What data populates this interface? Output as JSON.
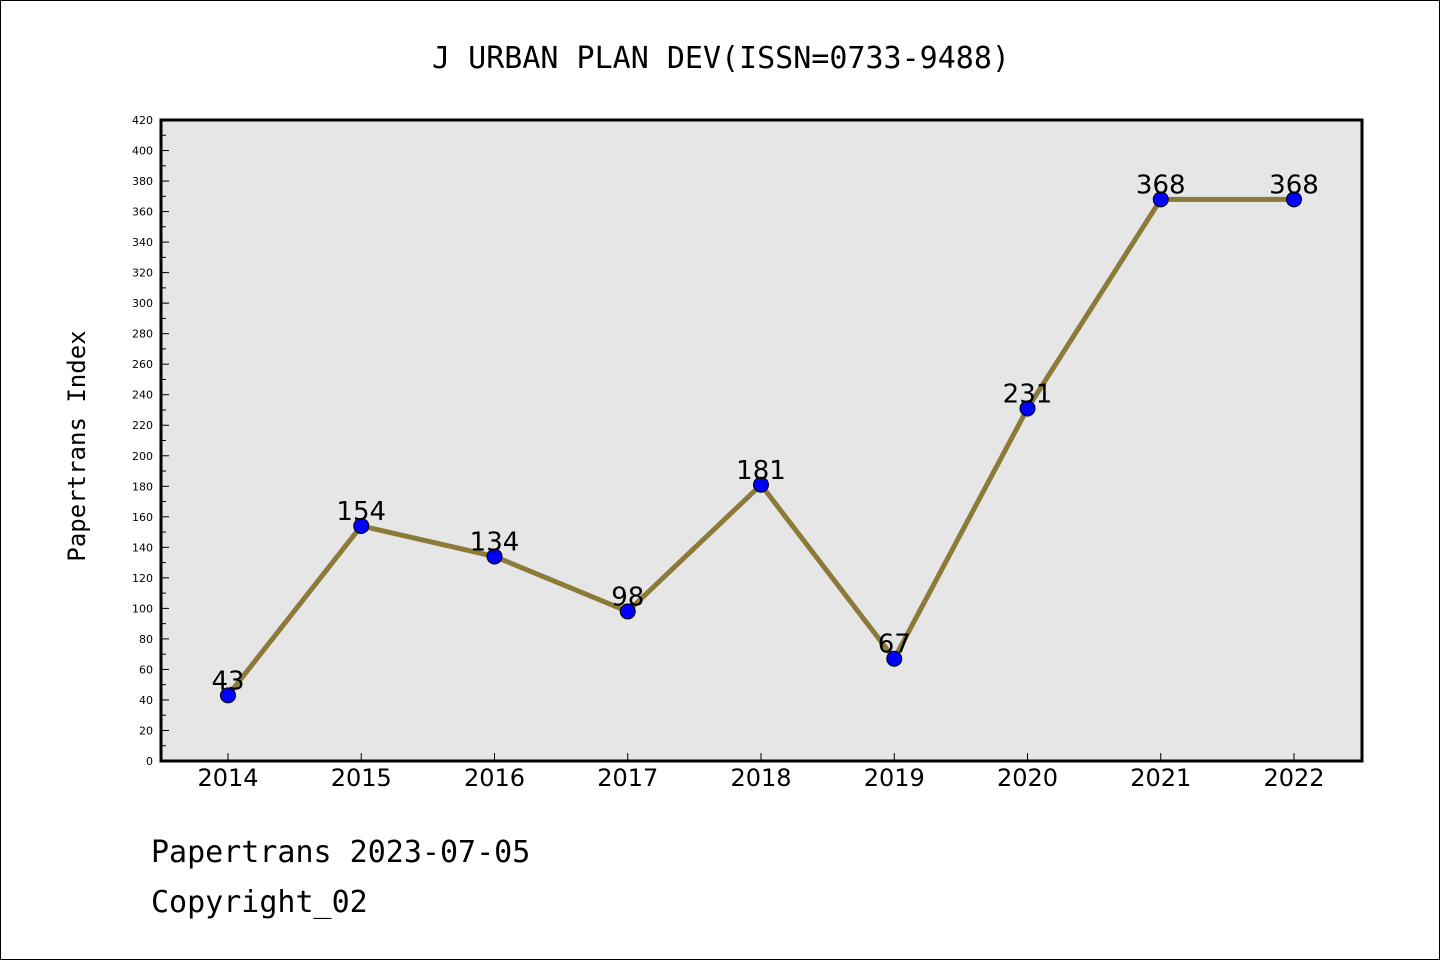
{
  "chart_data": {
    "type": "line",
    "title": "J URBAN PLAN DEV(ISSN=0733-9488)",
    "xlabel": "",
    "ylabel": "Papertrans Index",
    "categories": [
      "2014",
      "2015",
      "2016",
      "2017",
      "2018",
      "2019",
      "2020",
      "2021",
      "2022"
    ],
    "series": [
      {
        "values": [
          43,
          154,
          134,
          98,
          181,
          67,
          231,
          368,
          368
        ]
      }
    ],
    "data_labels": [
      "43",
      "154",
      "134",
      "98",
      "181",
      "67",
      "231",
      "368",
      "368"
    ],
    "ylim": [
      0,
      420
    ],
    "yticks": [
      0,
      20,
      40,
      60,
      80,
      100,
      120,
      140,
      160,
      180,
      200,
      220,
      240,
      260,
      280,
      300,
      320,
      340,
      360,
      380,
      400,
      420
    ],
    "grid": false,
    "legend": "none"
  },
  "colors": {
    "line": "#8b7a38",
    "marker": "#0000ff",
    "plot_background": "#e6e6e6"
  },
  "footer": {
    "date_line": "Papertrans 2023-07-05",
    "copyright": "Copyright_02"
  }
}
